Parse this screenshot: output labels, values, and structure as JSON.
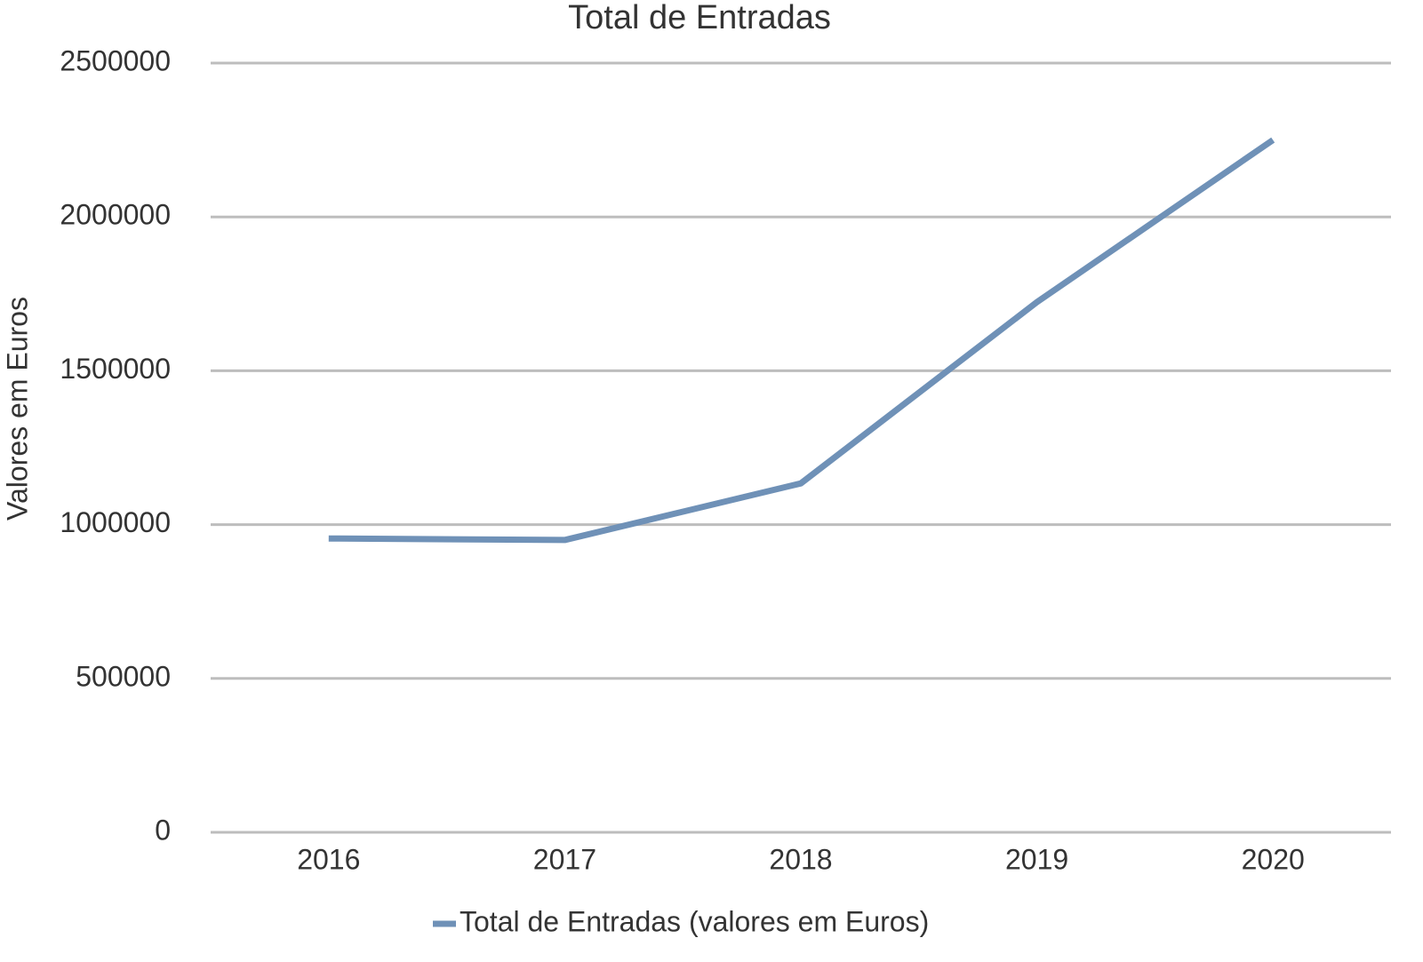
{
  "chart_data": {
    "type": "line",
    "title": "Total de Entradas",
    "y_label": "Valores em Euros",
    "categories": [
      "2016",
      "2017",
      "2018",
      "2019",
      "2020"
    ],
    "series": [
      {
        "name": "Total de Entradas (valores em Euros)",
        "color": "#6f91b7",
        "values": [
          955000,
          950000,
          1134000,
          1723000,
          2250000
        ]
      }
    ],
    "ylim": [
      0,
      2500000
    ],
    "yticks": [
      0,
      500000,
      1000000,
      1500000,
      2000000,
      2500000
    ],
    "grid": true,
    "legend": "bottom"
  }
}
